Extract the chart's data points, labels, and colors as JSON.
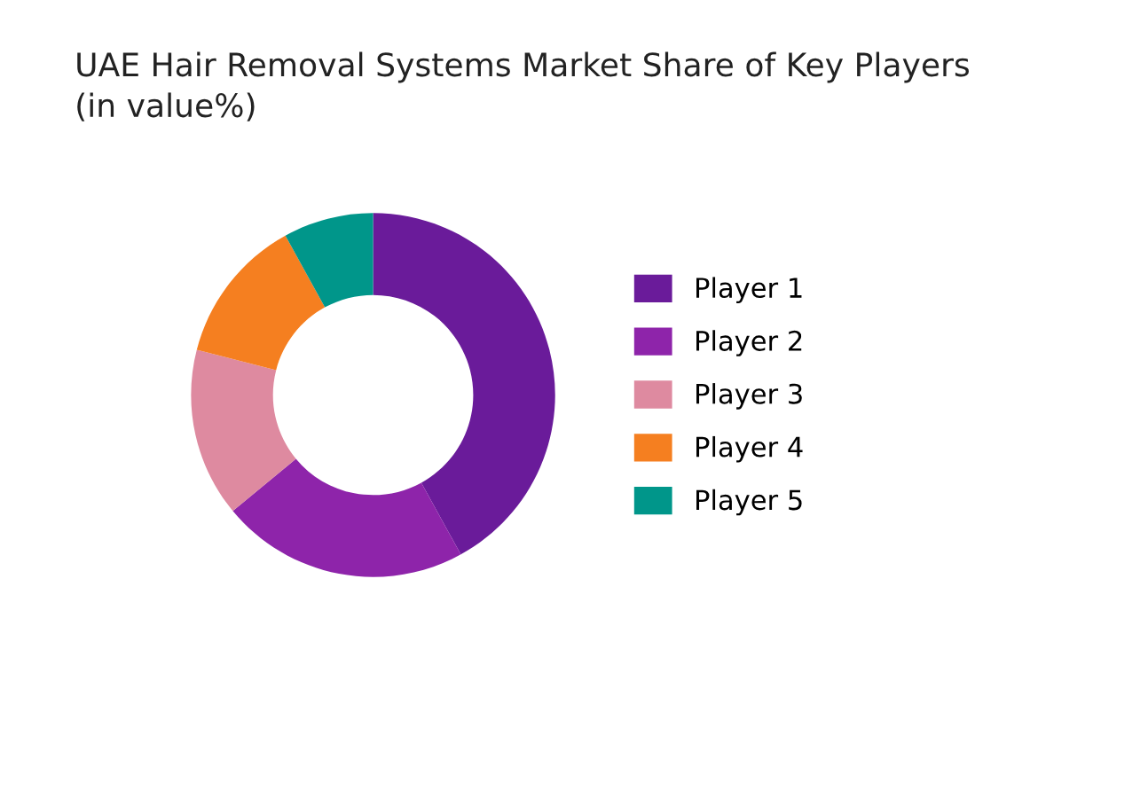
{
  "chart_data": {
    "type": "donut",
    "title": "UAE Hair Removal Systems Market Share of Key Players\n(in value%)",
    "categories": [
      "Player 1",
      "Player 2",
      "Player 3",
      "Player 4",
      "Player 5"
    ],
    "values": [
      42,
      22,
      15,
      13,
      8
    ],
    "colors": [
      "#6a1b9a",
      "#8e24aa",
      "#de8aa0",
      "#f57f20",
      "#00968a"
    ],
    "legend": "right"
  }
}
